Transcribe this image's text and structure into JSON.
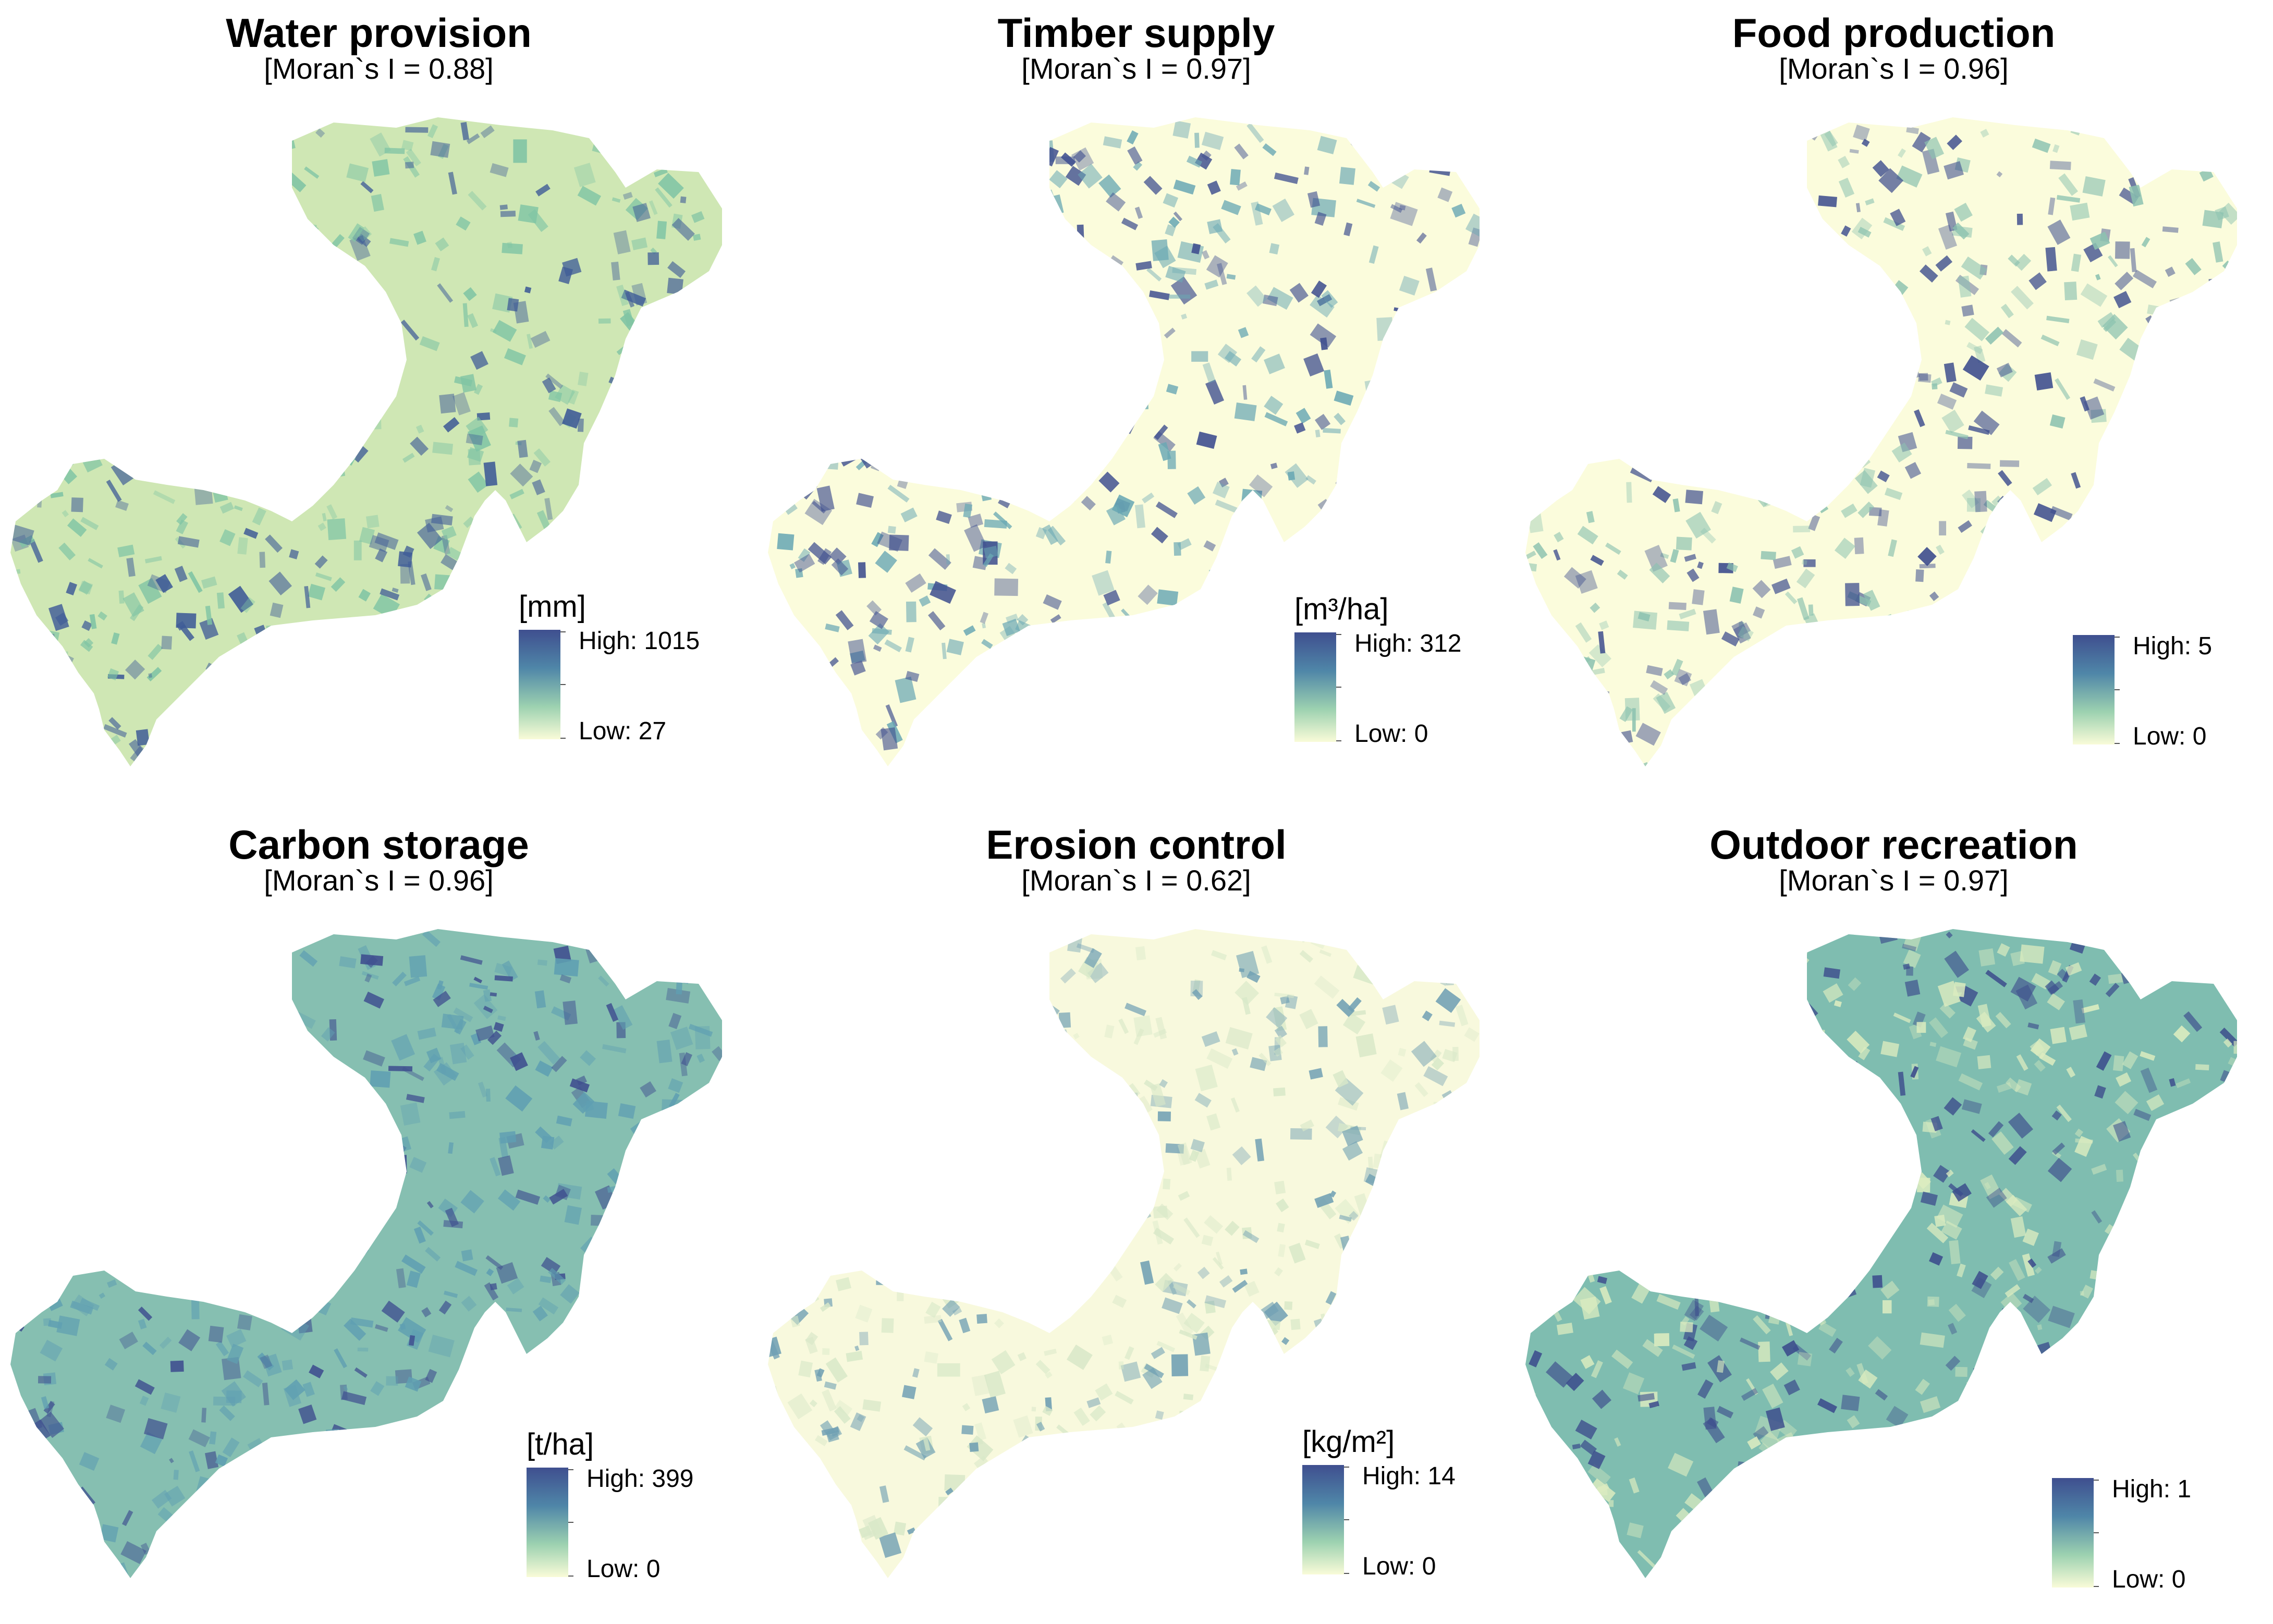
{
  "panels": [
    {
      "title": "Water provision",
      "stat": "[Moran`s I = 0.88]",
      "unit": "[mm]",
      "high": "High: 1015",
      "low": "Low: 27",
      "colors": {
        "base": "#cfe7b4",
        "mid": "#7fc4a4",
        "dark": "#3f5c97"
      }
    },
    {
      "title": "Timber supply",
      "stat": "[Moran`s I = 0.97]",
      "unit": "[m³/ha]",
      "high": "High: 312",
      "low": "Low: 0",
      "colors": {
        "base": "#fbfcdc",
        "mid": "#6aa8b4",
        "dark": "#3f4f8f"
      }
    },
    {
      "title": "Food production",
      "stat": "[Moran`s I = 0.96]",
      "unit": "",
      "high": "High: 5",
      "low": "Low: 0",
      "colors": {
        "base": "#fbfcdc",
        "mid": "#8cc2b0",
        "dark": "#3a4a8c"
      }
    },
    {
      "title": "Carbon storage",
      "stat": "[Moran`s I = 0.96]",
      "unit": "[t/ha]",
      "high": "High: 399",
      "low": "Low: 0",
      "colors": {
        "base": "#86bfb1",
        "mid": "#5f9fb2",
        "dark": "#3f4f8f"
      }
    },
    {
      "title": "Erosion control",
      "stat": "[Moran`s I = 0.62]",
      "unit": "[kg/m²]",
      "high": "High: 14",
      "low": "Low: 0",
      "colors": {
        "base": "#f8f9dd",
        "mid": "#d8e8c8",
        "dark": "#6f9fb3"
      }
    },
    {
      "title": "Outdoor recreation",
      "stat": "[Moran`s I = 0.97]",
      "unit": "",
      "high": "High: 1",
      "low": "Low: 0",
      "colors": {
        "base": "#7fbdb0",
        "mid": "#dcecc0",
        "dark": "#3c4c8c"
      }
    }
  ]
}
